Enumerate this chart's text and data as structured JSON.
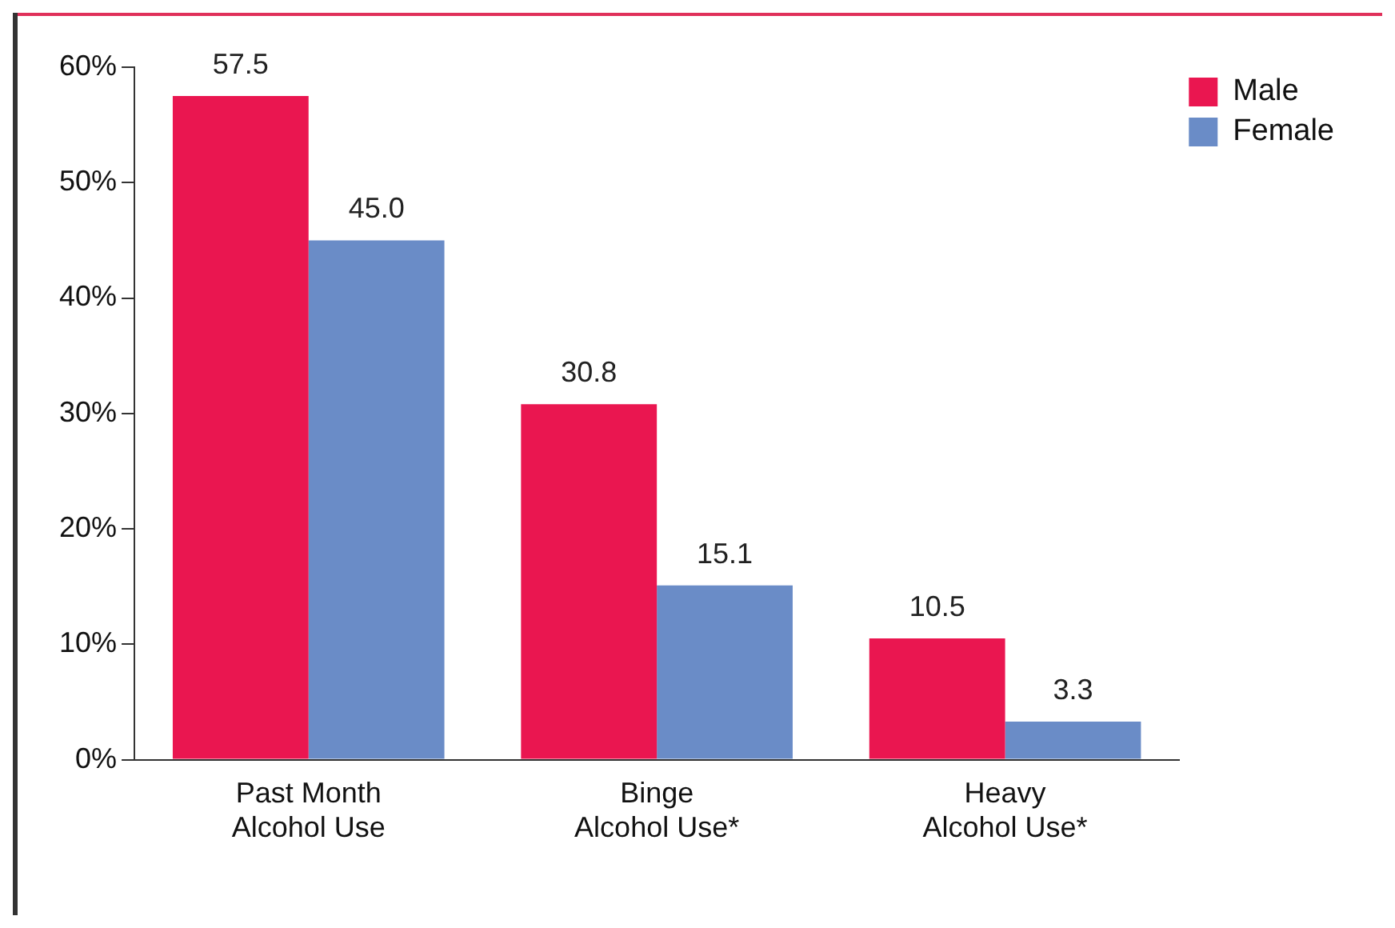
{
  "chart_data": {
    "type": "bar",
    "categories": [
      "Past Month Alcohol Use",
      "Binge Alcohol Use*",
      "Heavy Alcohol Use*"
    ],
    "series": [
      {
        "name": "Male",
        "color": "#ea1650",
        "values": [
          57.5,
          30.8,
          10.5
        ],
        "value_labels": [
          "57.5",
          "30.8",
          "10.5"
        ]
      },
      {
        "name": "Female",
        "color": "#6a8cc7",
        "values": [
          45.0,
          15.1,
          3.3
        ],
        "value_labels": [
          "45.0",
          "15.1",
          "3.3"
        ]
      }
    ],
    "ylim": [
      0,
      60
    ],
    "yticks": [
      {
        "value": 0,
        "label": "0%"
      },
      {
        "value": 10,
        "label": "10%"
      },
      {
        "value": 20,
        "label": "20%"
      },
      {
        "value": 30,
        "label": "30%"
      },
      {
        "value": 40,
        "label": "40%"
      },
      {
        "value": 50,
        "label": "50%"
      },
      {
        "value": 60,
        "label": "60%"
      }
    ],
    "grid": false,
    "legend": "top right"
  }
}
